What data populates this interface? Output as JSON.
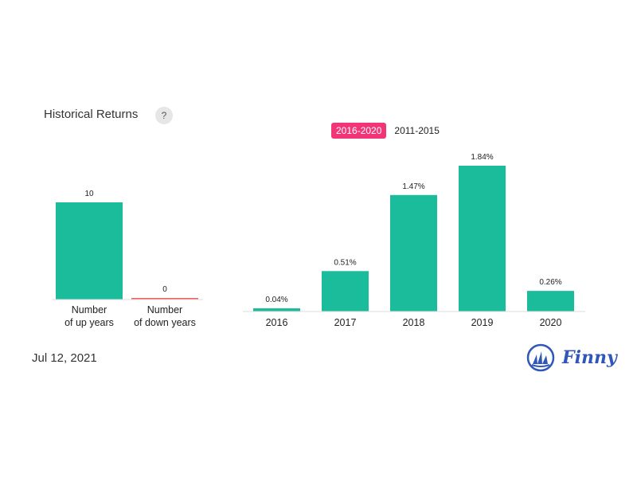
{
  "header": {
    "title": "Historical Returns",
    "help_label": "?"
  },
  "tabs": [
    {
      "label": "2016-2020",
      "active": true
    },
    {
      "label": "2011-2015",
      "active": false
    }
  ],
  "footer": {
    "date": "Jul 12, 2021",
    "brand": "Finny"
  },
  "colors": {
    "up": "#1abc9c",
    "down": "#f06363",
    "accent": "#f23577",
    "brand": "#2f56b8"
  },
  "chart_data": [
    {
      "type": "bar",
      "categories": [
        [
          "Number",
          "of up years"
        ],
        [
          "Number",
          "of down years"
        ]
      ],
      "values": [
        10,
        0
      ],
      "data_labels": [
        "10",
        "0"
      ],
      "ylim": [
        0,
        10
      ]
    },
    {
      "type": "bar",
      "categories": [
        "2016",
        "2017",
        "2018",
        "2019",
        "2020"
      ],
      "values": [
        0.04,
        0.51,
        1.47,
        1.84,
        0.26
      ],
      "data_labels": [
        "0.04%",
        "0.51%",
        "1.47%",
        "1.84%",
        "0.26%"
      ],
      "ylim": [
        0,
        1.84
      ]
    }
  ]
}
